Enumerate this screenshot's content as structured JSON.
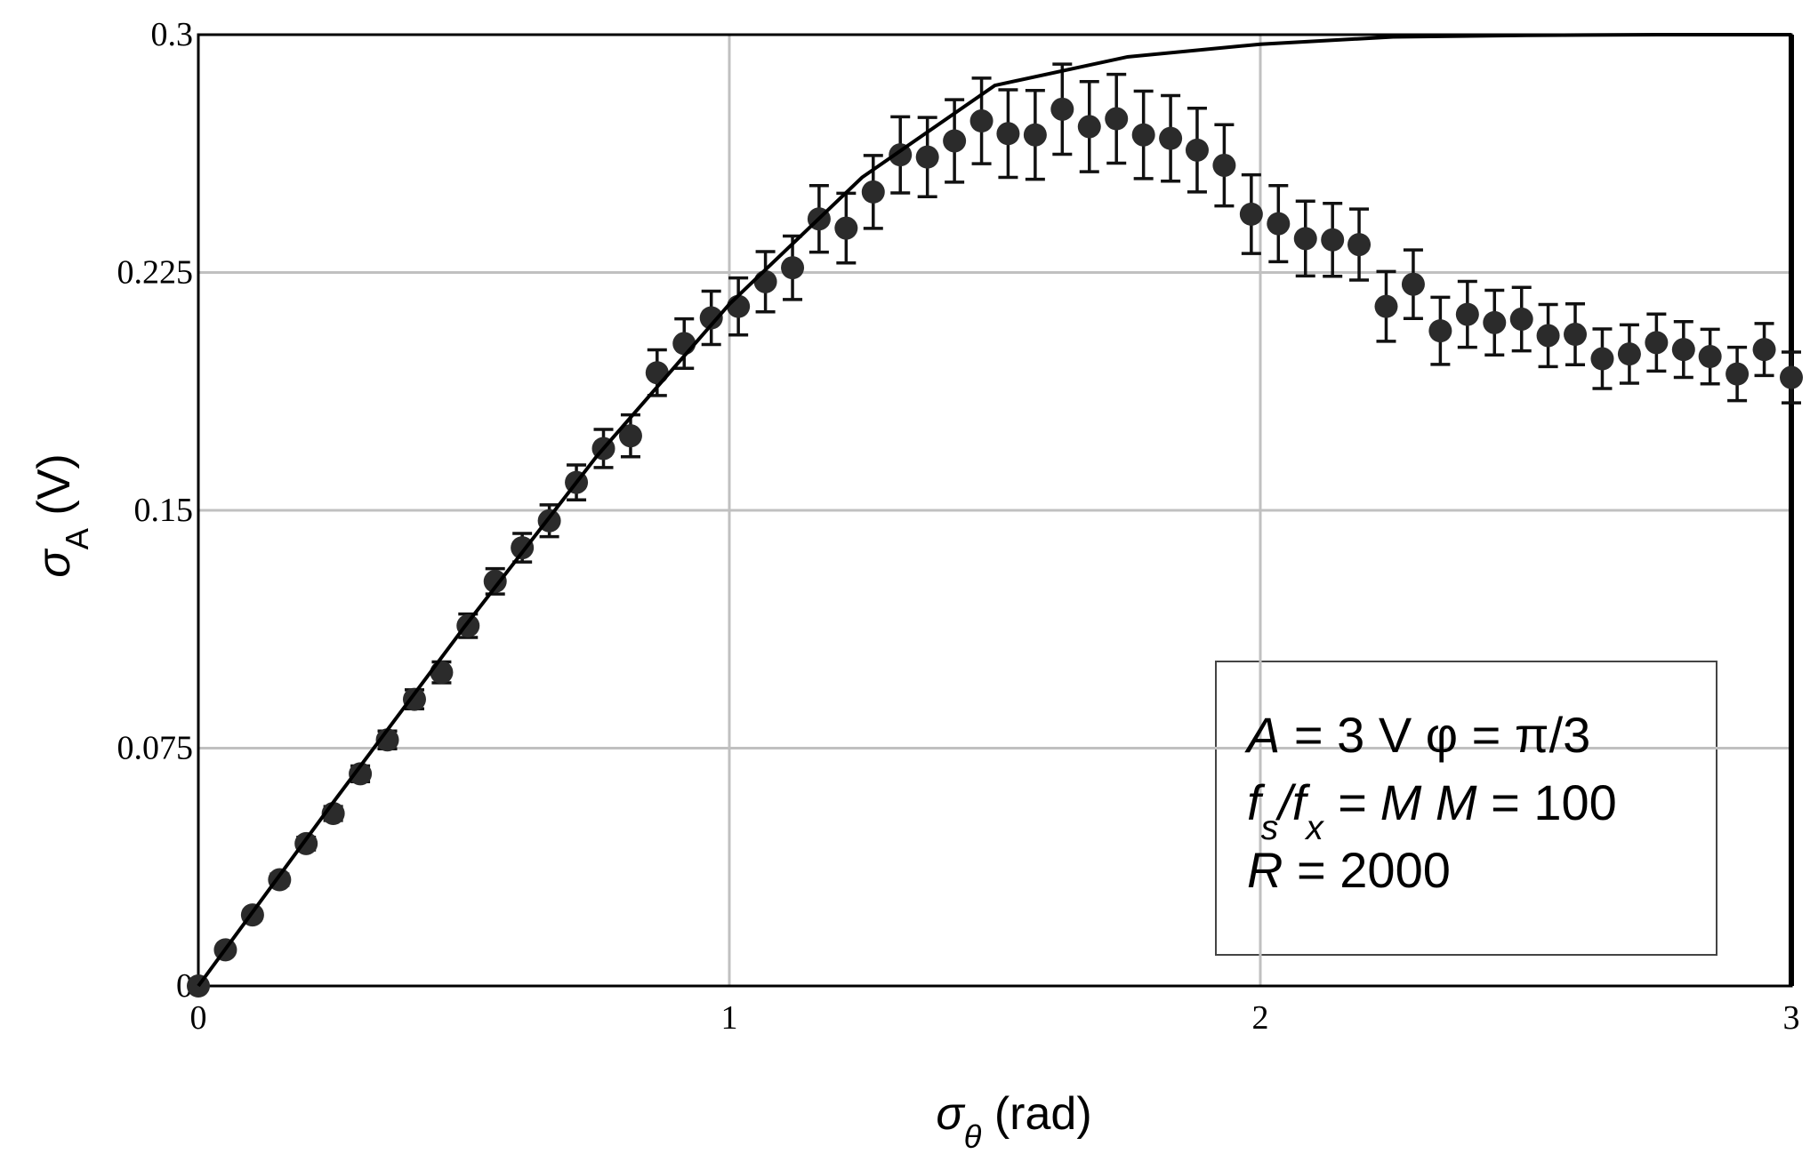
{
  "chart_data": {
    "type": "scatter",
    "xlabel": [
      {
        "text": "σ",
        "style": "italic"
      },
      {
        "text": "θ",
        "style": "sub-italic"
      },
      {
        "text": " (rad)",
        "style": "normal"
      }
    ],
    "ylabel": [
      {
        "text": "σ",
        "style": "italic"
      },
      {
        "text": "A",
        "style": "sub"
      },
      {
        "text": " (V)",
        "style": "normal"
      }
    ],
    "xlim": [
      0,
      3
    ],
    "xticks": [
      0,
      1,
      2,
      3
    ],
    "ylim": [
      0,
      0.3
    ],
    "yticks": [
      0,
      0.075,
      0.15,
      0.225,
      0.3
    ],
    "grid": true,
    "series": [
      {
        "mode": "markers-errorbars",
        "color": "#2b2b2b",
        "x": [
          0,
          0.051,
          0.102,
          0.153,
          0.203,
          0.254,
          0.305,
          0.356,
          0.407,
          0.458,
          0.508,
          0.559,
          0.61,
          0.661,
          0.712,
          0.763,
          0.814,
          0.864,
          0.915,
          0.966,
          1.017,
          1.068,
          1.119,
          1.169,
          1.22,
          1.271,
          1.322,
          1.373,
          1.424,
          1.475,
          1.525,
          1.576,
          1.627,
          1.678,
          1.729,
          1.78,
          1.831,
          1.881,
          1.932,
          1.983,
          2.034,
          2.085,
          2.136,
          2.186,
          2.237,
          2.288,
          2.339,
          2.39,
          2.441,
          2.492,
          2.542,
          2.593,
          2.644,
          2.695,
          2.746,
          2.797,
          2.847,
          2.898,
          2.949,
          3
        ],
        "values": [
          0,
          0.0114,
          0.0224,
          0.0335,
          0.0449,
          0.0544,
          0.0669,
          0.0776,
          0.0904,
          0.0989,
          0.1136,
          0.1276,
          0.1382,
          0.1467,
          0.1588,
          0.1695,
          0.1735,
          0.1934,
          0.2026,
          0.2107,
          0.2143,
          0.2221,
          0.2265,
          0.2419,
          0.239,
          0.2504,
          0.2621,
          0.2614,
          0.2665,
          0.2728,
          0.2688,
          0.2684,
          0.2765,
          0.271,
          0.2735,
          0.2684,
          0.2673,
          0.2636,
          0.2588,
          0.2434,
          0.2404,
          0.2357,
          0.2353,
          0.2338,
          0.2143,
          0.2213,
          0.2066,
          0.2118,
          0.2092,
          0.2103,
          0.2051,
          0.2055,
          0.1978,
          0.1993,
          0.2029,
          0.2007,
          0.1985,
          0.193,
          0.2007,
          0.1919
        ],
        "errors": [
          0,
          0.0012,
          0.0015,
          0.0018,
          0.002,
          0.0022,
          0.0025,
          0.0028,
          0.003,
          0.0033,
          0.0037,
          0.004,
          0.0045,
          0.005,
          0.0055,
          0.006,
          0.0066,
          0.0072,
          0.0078,
          0.0084,
          0.009,
          0.0095,
          0.01,
          0.0105,
          0.011,
          0.0115,
          0.012,
          0.0125,
          0.013,
          0.0135,
          0.0138,
          0.014,
          0.0142,
          0.0142,
          0.014,
          0.0138,
          0.0135,
          0.0132,
          0.0128,
          0.0124,
          0.012,
          0.0118,
          0.0115,
          0.0112,
          0.011,
          0.0108,
          0.0106,
          0.0104,
          0.0102,
          0.01,
          0.0098,
          0.0096,
          0.0094,
          0.0092,
          0.009,
          0.0088,
          0.0086,
          0.0084,
          0.0082,
          0.008
        ]
      },
      {
        "mode": "line",
        "color": "#000000",
        "x": [
          0,
          0.25,
          0.5,
          0.75,
          1,
          1.25,
          1.5,
          1.75,
          2,
          2.25,
          2.5,
          2.75,
          3
        ],
        "values": [
          0,
          0.057,
          0.113,
          0.167,
          0.215,
          0.255,
          0.284,
          0.293,
          0.297,
          0.2993,
          0.2998,
          0.3,
          0.3
        ]
      }
    ],
    "annotation": [
      [
        {
          "text": "A",
          "style": "italic"
        },
        {
          "text": " = 3 V   φ = π/3",
          "style": "normal"
        }
      ],
      [
        {
          "text": "f",
          "style": "italic"
        },
        {
          "text": "s",
          "style": "sub-italic"
        },
        {
          "text": "/",
          "style": "italic"
        },
        {
          "text": "f",
          "style": "italic"
        },
        {
          "text": "x",
          "style": "sub-italic"
        },
        {
          "text": " = M  M",
          "style": "italic"
        },
        {
          "text": " = 100",
          "style": "normal"
        }
      ],
      [
        {
          "text": "R",
          "style": "italic"
        },
        {
          "text": " = 2000",
          "style": "normal"
        }
      ]
    ]
  }
}
